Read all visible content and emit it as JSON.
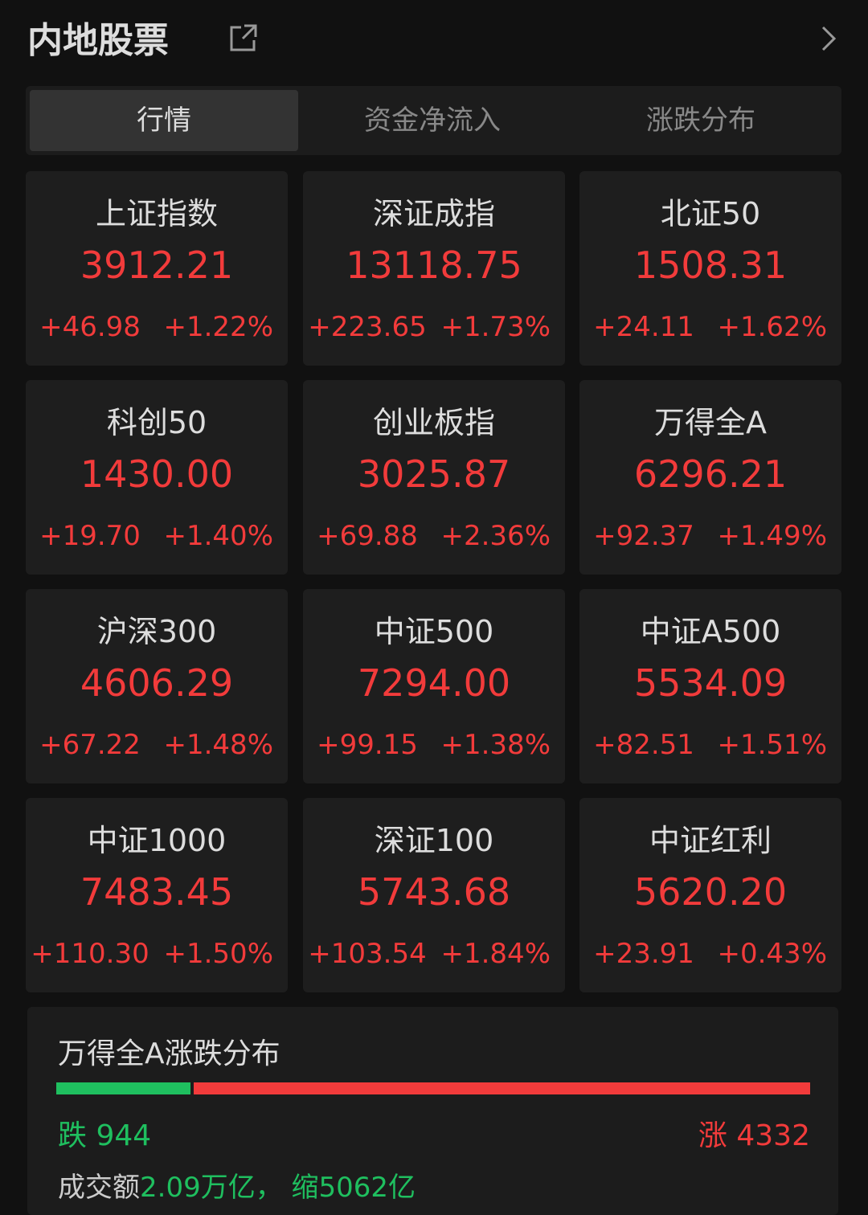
{
  "header": {
    "title": "内地股票"
  },
  "tabs": [
    "行情",
    "资金净流入",
    "涨跌分布"
  ],
  "cards": [
    {
      "name": "上证指数",
      "value": "3912.21",
      "change": "+46.98",
      "pct": "+1.22%"
    },
    {
      "name": "深证成指",
      "value": "13118.75",
      "change": "+223.65",
      "pct": "+1.73%"
    },
    {
      "name": "北证50",
      "value": "1508.31",
      "change": "+24.11",
      "pct": "+1.62%"
    },
    {
      "name": "科创50",
      "value": "1430.00",
      "change": "+19.70",
      "pct": "+1.40%"
    },
    {
      "name": "创业板指",
      "value": "3025.87",
      "change": "+69.88",
      "pct": "+2.36%"
    },
    {
      "name": "万得全A",
      "value": "6296.21",
      "change": "+92.37",
      "pct": "+1.49%"
    },
    {
      "name": "沪深300",
      "value": "4606.29",
      "change": "+67.22",
      "pct": "+1.48%"
    },
    {
      "name": "中证500",
      "value": "7294.00",
      "change": "+99.15",
      "pct": "+1.38%"
    },
    {
      "name": "中证A500",
      "value": "5534.09",
      "change": "+82.51",
      "pct": "+1.51%"
    },
    {
      "name": "中证1000",
      "value": "7483.45",
      "change": "+110.30",
      "pct": "+1.50%"
    },
    {
      "name": "深证100",
      "value": "5743.68",
      "change": "+103.54",
      "pct": "+1.84%"
    },
    {
      "name": "中证红利",
      "value": "5620.20",
      "change": "+23.91",
      "pct": "+0.43%"
    }
  ],
  "distribution": {
    "title": "万得全A涨跌分布",
    "down_label": "跌",
    "down": 944,
    "up_label": "涨",
    "up": 4332,
    "turnover_label": "成交额",
    "turnover": "2.09万亿",
    "separator": "，",
    "turnover_change": "缩5062亿"
  }
}
